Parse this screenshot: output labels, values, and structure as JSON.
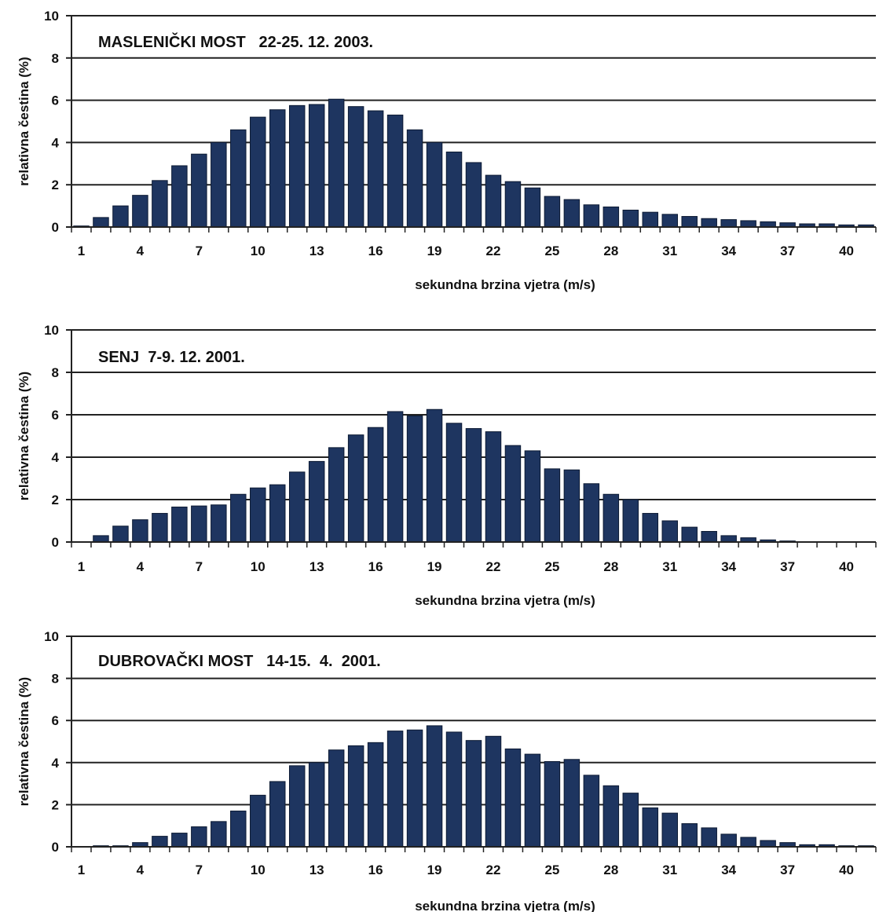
{
  "chart_data": [
    {
      "type": "bar",
      "title": "MASLENIČKI MOST   22-25. 12. 2003.",
      "xlabel": "sekundna brzina vjetra (m/s)",
      "ylabel": "relativna čestina (%)",
      "ylim": [
        0,
        10
      ],
      "yticks": [
        0,
        2,
        4,
        6,
        8,
        10
      ],
      "xticks": [
        1,
        4,
        7,
        10,
        13,
        16,
        19,
        22,
        25,
        28,
        31,
        34,
        37,
        40
      ],
      "grid": true,
      "x": [
        1,
        2,
        3,
        4,
        5,
        6,
        7,
        8,
        9,
        10,
        11,
        12,
        13,
        14,
        15,
        16,
        17,
        18,
        19,
        20,
        21,
        22,
        23,
        24,
        25,
        26,
        27,
        28,
        29,
        30,
        31,
        32,
        33,
        34,
        35,
        36,
        37,
        38,
        39,
        40,
        41
      ],
      "values": [
        0.05,
        0.45,
        1.0,
        1.5,
        2.2,
        2.9,
        3.45,
        4.0,
        4.6,
        5.2,
        5.55,
        5.75,
        5.8,
        6.05,
        5.7,
        5.5,
        5.3,
        4.6,
        4.0,
        3.55,
        3.05,
        2.45,
        2.15,
        1.85,
        1.45,
        1.3,
        1.05,
        0.95,
        0.8,
        0.7,
        0.6,
        0.5,
        0.4,
        0.35,
        0.3,
        0.25,
        0.2,
        0.15,
        0.15,
        0.1,
        0.1
      ],
      "color": "#1e3560"
    },
    {
      "type": "bar",
      "title": "SENJ  7-9. 12. 2001.",
      "xlabel": "sekundna brzina vjetra (m/s)",
      "ylabel": "relativna čestina (%)",
      "ylim": [
        0,
        10
      ],
      "yticks": [
        0,
        2,
        4,
        6,
        8,
        10
      ],
      "xticks": [
        1,
        4,
        7,
        10,
        13,
        16,
        19,
        22,
        25,
        28,
        31,
        34,
        37,
        40
      ],
      "grid": true,
      "x": [
        1,
        2,
        3,
        4,
        5,
        6,
        7,
        8,
        9,
        10,
        11,
        12,
        13,
        14,
        15,
        16,
        17,
        18,
        19,
        20,
        21,
        22,
        23,
        24,
        25,
        26,
        27,
        28,
        29,
        30,
        31,
        32,
        33,
        34,
        35,
        36,
        37,
        38,
        39,
        40,
        41
      ],
      "values": [
        0.0,
        0.3,
        0.75,
        1.05,
        1.35,
        1.65,
        1.7,
        1.75,
        2.25,
        2.55,
        2.7,
        3.3,
        3.8,
        4.45,
        5.05,
        5.4,
        6.15,
        5.95,
        6.25,
        5.6,
        5.35,
        5.2,
        4.55,
        4.3,
        3.45,
        3.4,
        2.75,
        2.25,
        2.0,
        1.35,
        1.0,
        0.7,
        0.5,
        0.3,
        0.2,
        0.1,
        0.05,
        0.0,
        0.0,
        0.0,
        0.0
      ],
      "color": "#1e3560"
    },
    {
      "type": "bar",
      "title": "DUBROVAČKI MOST   14-15.  4.  2001.",
      "xlabel": "sekundna brzina vjetra (m/s)",
      "ylabel": "relativna čestina (%)",
      "ylim": [
        0,
        10
      ],
      "yticks": [
        0,
        2,
        4,
        6,
        8,
        10
      ],
      "xticks": [
        1,
        4,
        7,
        10,
        13,
        16,
        19,
        22,
        25,
        28,
        31,
        34,
        37,
        40
      ],
      "grid": true,
      "x": [
        1,
        2,
        3,
        4,
        5,
        6,
        7,
        8,
        9,
        10,
        11,
        12,
        13,
        14,
        15,
        16,
        17,
        18,
        19,
        20,
        21,
        22,
        23,
        24,
        25,
        26,
        27,
        28,
        29,
        30,
        31,
        32,
        33,
        34,
        35,
        36,
        37,
        38,
        39,
        40,
        41
      ],
      "values": [
        0.0,
        0.05,
        0.05,
        0.2,
        0.5,
        0.65,
        0.95,
        1.2,
        1.7,
        2.45,
        3.1,
        3.85,
        4.0,
        4.6,
        4.8,
        4.95,
        5.5,
        5.55,
        5.75,
        5.45,
        5.05,
        5.25,
        4.65,
        4.4,
        4.05,
        4.15,
        3.4,
        2.9,
        2.55,
        1.85,
        1.6,
        1.1,
        0.9,
        0.6,
        0.45,
        0.3,
        0.2,
        0.1,
        0.1,
        0.05,
        0.05
      ],
      "color": "#1e3560"
    }
  ]
}
